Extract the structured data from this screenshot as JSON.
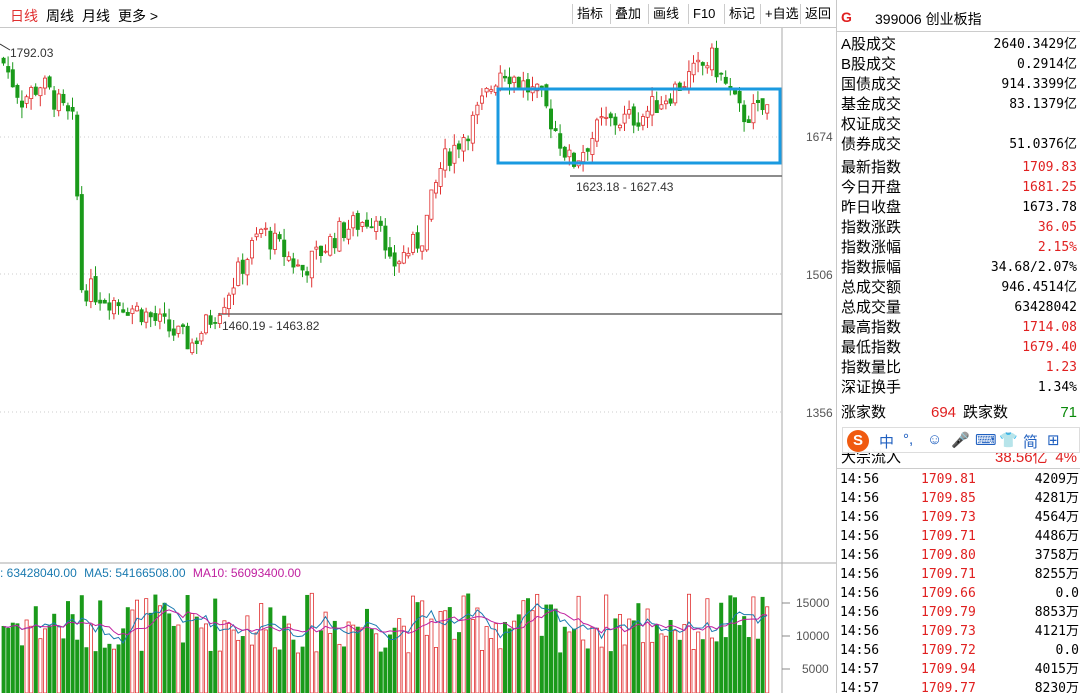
{
  "toolbar": {
    "periods": [
      "日线",
      "周线",
      "月线"
    ],
    "more": "更多 >",
    "buttons": [
      "指标",
      "叠加",
      "画线",
      "F10",
      "标记",
      "+自选",
      "返回"
    ]
  },
  "chart": {
    "max_label": "1792.03",
    "range_high": "1623.18 - 1627.43",
    "range_low": "1460.19 - 1463.82",
    "price_axis": [
      "1674",
      "1506",
      "1356"
    ],
    "volume_axis": [
      "15000",
      "10000",
      "5000"
    ],
    "volume_line": {
      "vol": ": 63428040.00",
      "ma5": "MA5: 54166508.00",
      "ma10": "MA10: 56093400.00"
    }
  },
  "side": {
    "logo": "G",
    "code": "399006 创业板指",
    "turnover": [
      {
        "k": "A股成交",
        "v": "2640.3429亿"
      },
      {
        "k": "B股成交",
        "v": "0.2914亿"
      },
      {
        "k": "国债成交",
        "v": "914.3399亿"
      },
      {
        "k": "基金成交",
        "v": "83.1379亿"
      },
      {
        "k": "权证成交",
        "v": ""
      },
      {
        "k": "债券成交",
        "v": "51.0376亿"
      }
    ],
    "stats": [
      {
        "k": "最新指数",
        "v": "1709.83",
        "c": "red"
      },
      {
        "k": "今日开盘",
        "v": "1681.25",
        "c": "red"
      },
      {
        "k": "昨日收盘",
        "v": "1673.78",
        "c": ""
      },
      {
        "k": "指数涨跌",
        "v": "36.05",
        "c": "red"
      },
      {
        "k": "指数涨幅",
        "v": "2.15%",
        "c": "red"
      },
      {
        "k": "指数振幅",
        "v": "34.68/2.07%",
        "c": ""
      },
      {
        "k": "总成交额",
        "v": "946.4514亿",
        "c": ""
      },
      {
        "k": "总成交量",
        "v": "63428042",
        "c": ""
      },
      {
        "k": "最高指数",
        "v": "1714.08",
        "c": "red"
      },
      {
        "k": "最低指数",
        "v": "1679.40",
        "c": "red"
      },
      {
        "k": "指数量比",
        "v": "1.23",
        "c": "red"
      },
      {
        "k": "深证换手",
        "v": "1.34%",
        "c": ""
      }
    ],
    "updown": {
      "up_label": "涨家数",
      "up": "694",
      "down_label": "跌家数",
      "down": "71"
    },
    "flow": {
      "label": "大宗流入",
      "value": "38.56亿",
      "pct": "4%"
    },
    "ticks": [
      {
        "t": "14:56",
        "p": "1709.81",
        "v": "4209万"
      },
      {
        "t": "14:56",
        "p": "1709.85",
        "v": "4281万"
      },
      {
        "t": "14:56",
        "p": "1709.73",
        "v": "4564万"
      },
      {
        "t": "14:56",
        "p": "1709.71",
        "v": "4486万"
      },
      {
        "t": "14:56",
        "p": "1709.80",
        "v": "3758万"
      },
      {
        "t": "14:56",
        "p": "1709.71",
        "v": "8255万"
      },
      {
        "t": "14:56",
        "p": "1709.66",
        "v": "0.0"
      },
      {
        "t": "14:56",
        "p": "1709.79",
        "v": "8853万"
      },
      {
        "t": "14:56",
        "p": "1709.73",
        "v": "4121万"
      },
      {
        "t": "14:56",
        "p": "1709.72",
        "v": "0.0"
      },
      {
        "t": "14:57",
        "p": "1709.94",
        "v": "4015万"
      },
      {
        "t": "14:57",
        "p": "1709.77",
        "v": "8230万"
      }
    ]
  },
  "ime": {
    "glyphs": [
      "中",
      "°,",
      "☺",
      "🎤",
      "⌨",
      "👕",
      "简",
      "⊞"
    ]
  },
  "colors": {
    "up": "#e03030",
    "down": "#1a9a1a",
    "box": "#1a9ae0",
    "grid": "#c8c8c8"
  }
}
